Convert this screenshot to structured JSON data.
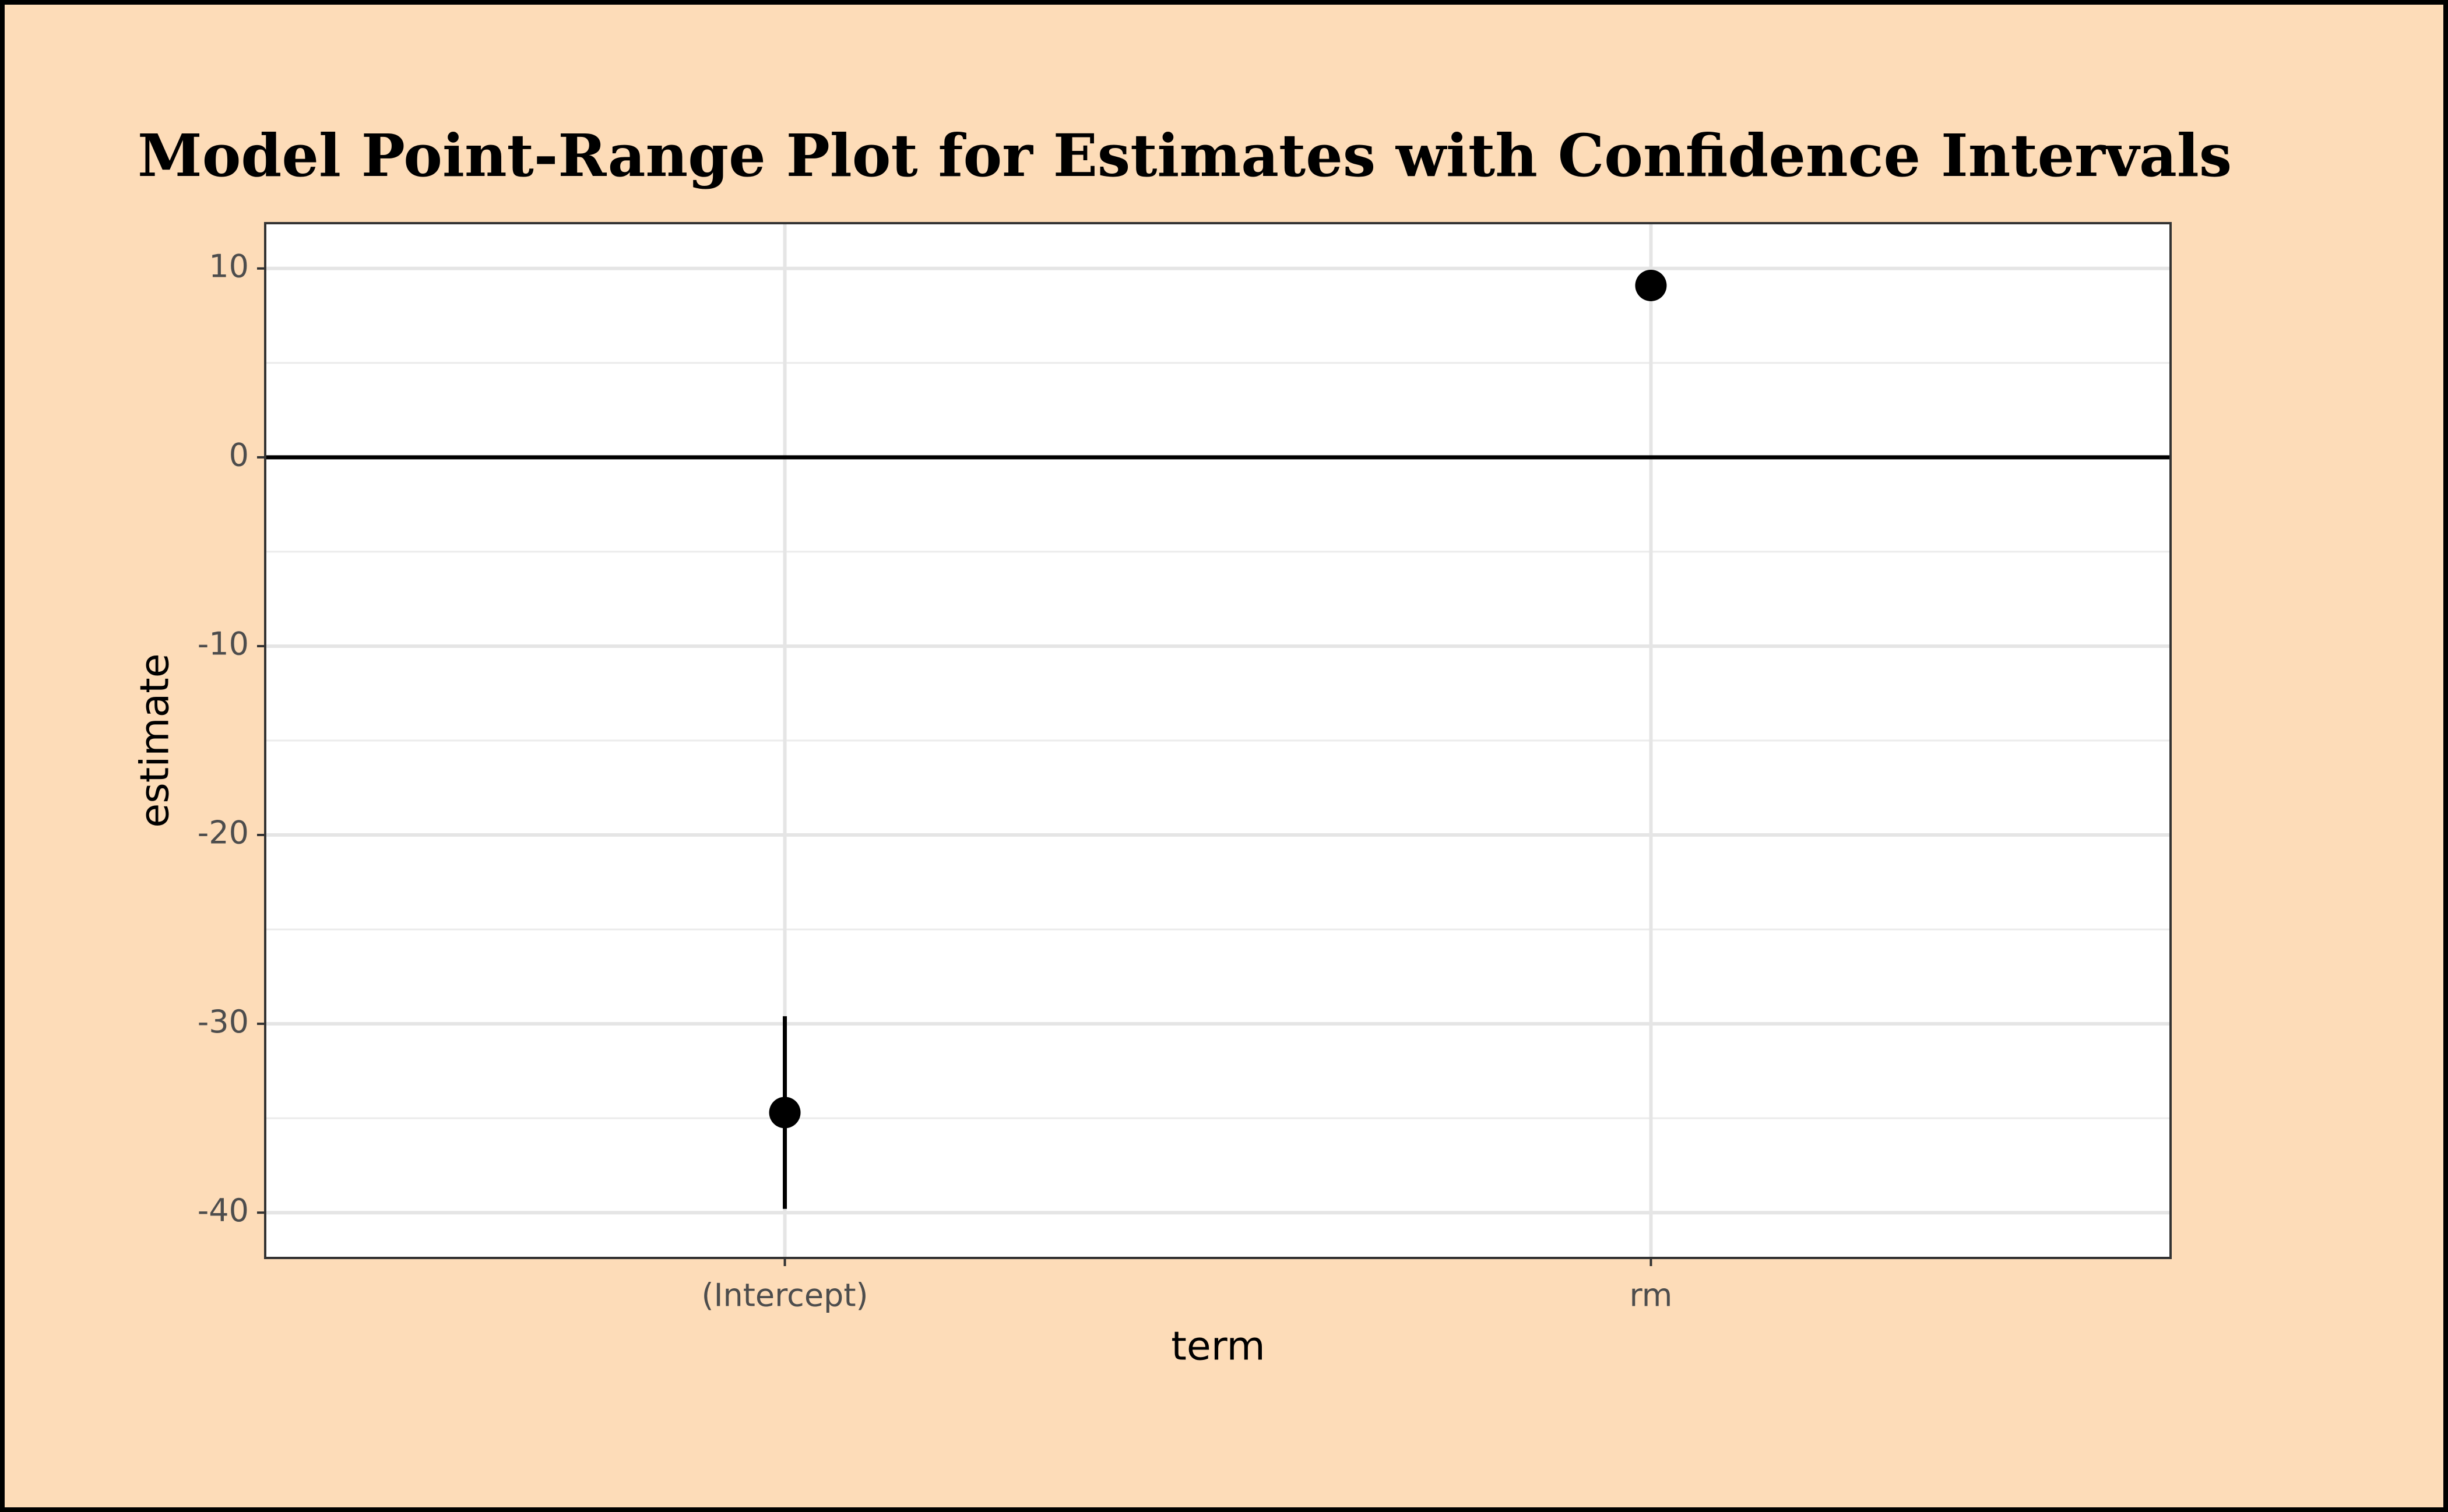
{
  "chart_data": {
    "type": "pointrange",
    "title": "Model Point-Range Plot for Estimates with Confidence Intervals",
    "x_label": "term",
    "y_label": "estimate",
    "categories": [
      "(Intercept)",
      "rm"
    ],
    "values": [
      -34.7,
      9.1
    ],
    "ci_lower": [
      -39.8,
      8.3
    ],
    "ci_upper": [
      -29.6,
      9.9
    ],
    "color": "#000000",
    "hline": 0,
    "ylim": [
      -42.4,
      12.4
    ],
    "yticks": [
      -40,
      -30,
      -20,
      -10,
      0,
      10
    ],
    "minor_yticks": [
      -35,
      -25,
      -15,
      -5,
      5
    ],
    "grid": true
  }
}
